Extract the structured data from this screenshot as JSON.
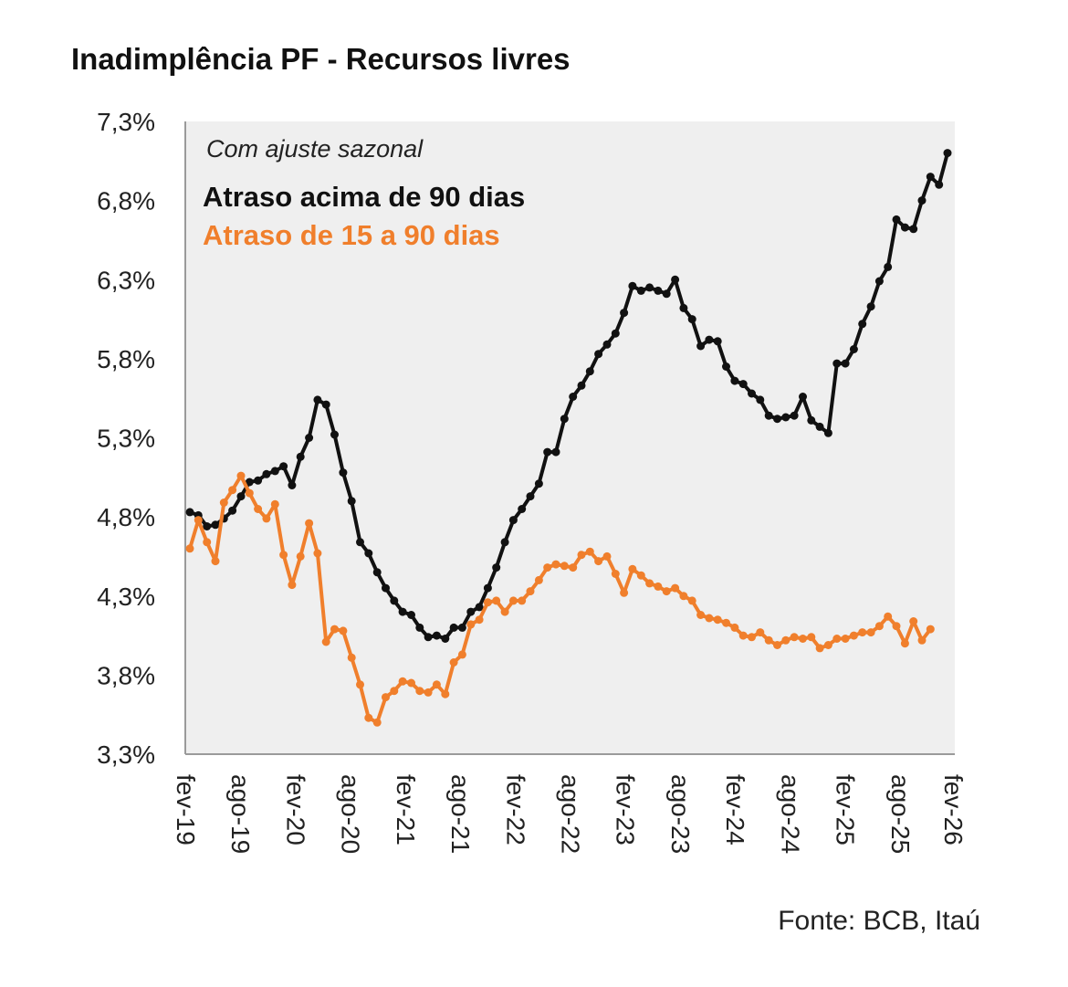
{
  "chart_data": {
    "type": "line",
    "title": "Inadimplência PF - Recursos livres",
    "note": "Com ajuste sazonal",
    "source": "Fonte: BCB, Itaú",
    "ylim": [
      3.3,
      7.3
    ],
    "yticks": [
      3.3,
      3.8,
      4.3,
      4.8,
      5.3,
      5.8,
      6.3,
      6.8,
      7.3
    ],
    "ytick_labels": [
      "3,3%",
      "3,8%",
      "4,3%",
      "4,8%",
      "5,3%",
      "5,8%",
      "6,3%",
      "6,8%",
      "7,3%"
    ],
    "xticks": [
      "fev-19",
      "ago-19",
      "fev-20",
      "ago-20",
      "fev-21",
      "ago-21",
      "fev-22",
      "ago-22",
      "fev-23",
      "ago-23",
      "fev-24",
      "ago-24",
      "fev-25",
      "ago-25",
      "fev-26"
    ],
    "grid": false,
    "legend": "top-left",
    "colors": {
      "series1": "#111111",
      "series2": "#F07F2C",
      "plot_bg": "#EFEFEF"
    },
    "series": [
      {
        "name": "Atraso acima de 90 dias",
        "color": "#111111",
        "values": [
          4.83,
          4.81,
          4.74,
          4.75,
          4.79,
          4.84,
          4.93,
          5.02,
          5.03,
          5.07,
          5.09,
          5.12,
          5.0,
          5.18,
          5.3,
          5.54,
          5.51,
          5.32,
          5.08,
          4.9,
          4.64,
          4.57,
          4.45,
          4.35,
          4.27,
          4.2,
          4.18,
          4.1,
          4.04,
          4.05,
          4.03,
          4.1,
          4.1,
          4.2,
          4.23,
          4.35,
          4.48,
          4.64,
          4.78,
          4.85,
          4.93,
          5.01,
          5.21,
          5.21,
          5.42,
          5.56,
          5.63,
          5.72,
          5.83,
          5.89,
          5.96,
          6.09,
          6.26,
          6.23,
          6.25,
          6.23,
          6.21,
          6.3,
          6.12,
          6.05,
          5.88,
          5.92,
          5.91,
          5.75,
          5.66,
          5.64,
          5.58,
          5.54,
          5.44,
          5.42,
          5.43,
          5.44,
          5.56,
          5.41,
          5.37,
          5.33,
          5.77,
          5.77,
          5.86,
          6.02,
          6.13,
          6.29,
          6.38,
          6.68,
          6.63,
          6.62,
          6.8,
          6.95,
          6.9,
          7.1
        ]
      },
      {
        "name": "Atraso de 15 a 90 dias",
        "color": "#F07F2C",
        "values": [
          4.6,
          4.78,
          4.64,
          4.52,
          4.89,
          4.97,
          5.06,
          4.95,
          4.85,
          4.79,
          4.88,
          4.56,
          4.37,
          4.55,
          4.76,
          4.57,
          4.01,
          4.09,
          4.08,
          3.91,
          3.74,
          3.53,
          3.5,
          3.66,
          3.7,
          3.76,
          3.75,
          3.7,
          3.69,
          3.74,
          3.68,
          3.88,
          3.93,
          4.12,
          4.15,
          4.26,
          4.27,
          4.2,
          4.27,
          4.27,
          4.33,
          4.4,
          4.48,
          4.5,
          4.49,
          4.48,
          4.56,
          4.58,
          4.52,
          4.55,
          4.44,
          4.32,
          4.47,
          4.43,
          4.38,
          4.36,
          4.33,
          4.35,
          4.3,
          4.27,
          4.18,
          4.16,
          4.15,
          4.13,
          4.1,
          4.05,
          4.04,
          4.07,
          4.02,
          3.99,
          4.02,
          4.04,
          4.03,
          4.04,
          3.97,
          3.99,
          4.03,
          4.03,
          4.05,
          4.07,
          4.07,
          4.11,
          4.17,
          4.11,
          4.0,
          4.14,
          4.02,
          4.09
        ]
      }
    ]
  }
}
